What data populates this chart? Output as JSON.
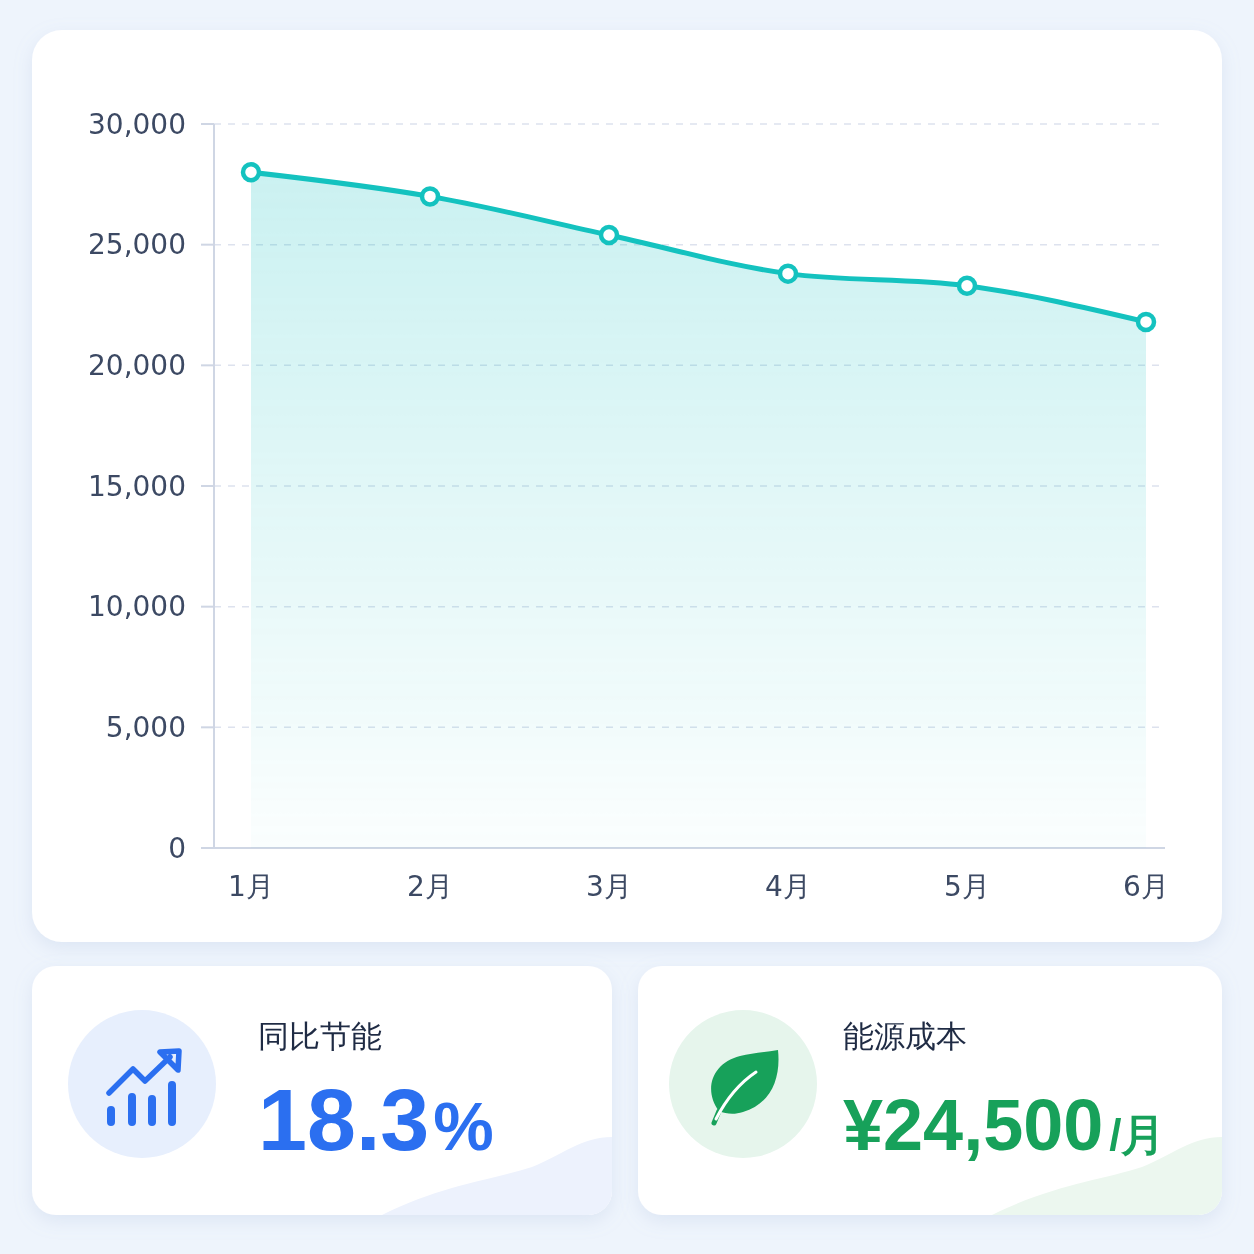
{
  "chart_data": [
    {
      "type": "area",
      "categories": [
        "1月",
        "2月",
        "3月",
        "4月",
        "5月",
        "6月"
      ],
      "values": [
        28000,
        27000,
        25400,
        23800,
        23300,
        21800
      ],
      "color": "#14c2bf",
      "ylim": [
        0,
        30000
      ],
      "yticks": [
        0,
        {
          "value": 5000,
          "label": "5,000"
        },
        {
          "value": 10000,
          "label": "10,000"
        },
        {
          "value": 15000,
          "label": "15,000"
        },
        {
          "value": 20000,
          "label": "20,000"
        },
        {
          "value": 25000,
          "label": "25,000"
        },
        {
          "value": 30000,
          "label": "30,000"
        }
      ],
      "grid": "y",
      "marker": "circle"
    },
    {
      "type": "other",
      "title": "同比节能",
      "annotations": [
        "18.3%"
      ],
      "color": "#2b6ff0"
    },
    {
      "type": "other",
      "title": "能源成本",
      "annotations": [
        "¥24,500/月"
      ],
      "color": "#17a15a"
    }
  ]
}
